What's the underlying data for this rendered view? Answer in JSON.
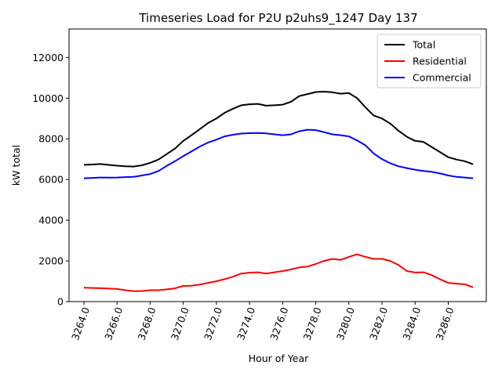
{
  "chart_data": {
    "type": "line",
    "title": "Timeseries Load for P2U p2uhs9_1247  Day 137",
    "xlabel": "Hour of Year",
    "ylabel": "kW total",
    "xlim": [
      3263.1,
      3288.3
    ],
    "ylim": [
      0,
      13400
    ],
    "xticks": [
      3264,
      3266,
      3268,
      3270,
      3272,
      3274,
      3276,
      3278,
      3280,
      3282,
      3284,
      3286
    ],
    "xtick_labels": [
      "3264.0",
      "3266.0",
      "3268.0",
      "3270.0",
      "3272.0",
      "3274.0",
      "3276.0",
      "3278.0",
      "3280.0",
      "3282.0",
      "3284.0",
      "3286.0"
    ],
    "yticks": [
      0,
      2000,
      4000,
      6000,
      8000,
      10000,
      12000
    ],
    "ytick_labels": [
      "0",
      "2000",
      "4000",
      "6000",
      "8000",
      "10000",
      "12000"
    ],
    "legend_position": "top-right",
    "x": [
      3264,
      3264.5,
      3265,
      3265.5,
      3266,
      3266.5,
      3267,
      3267.5,
      3268,
      3268.5,
      3269,
      3269.5,
      3270,
      3270.5,
      3271,
      3271.5,
      3272,
      3272.5,
      3273,
      3273.5,
      3274,
      3274.5,
      3275,
      3275.5,
      3276,
      3276.5,
      3277,
      3277.5,
      3278,
      3278.5,
      3279,
      3279.5,
      3280,
      3280.5,
      3281,
      3281.5,
      3282,
      3282.5,
      3283,
      3283.5,
      3284,
      3284.5,
      3285,
      3285.5,
      3286,
      3286.5,
      3287,
      3287.5
    ],
    "series": [
      {
        "name": "Total",
        "color": "#000000",
        "values": [
          6720,
          6740,
          6760,
          6720,
          6680,
          6650,
          6640,
          6700,
          6820,
          6980,
          7250,
          7520,
          7900,
          8180,
          8480,
          8780,
          9000,
          9280,
          9480,
          9650,
          9700,
          9720,
          9630,
          9650,
          9680,
          9820,
          10100,
          10200,
          10300,
          10320,
          10290,
          10220,
          10250,
          10000,
          9550,
          9150,
          9000,
          8750,
          8400,
          8100,
          7900,
          7850,
          7600,
          7350,
          7100,
          6980,
          6900,
          6750
        ]
      },
      {
        "name": "Residential",
        "color": "#ff0000",
        "values": [
          680,
          670,
          660,
          640,
          620,
          560,
          510,
          520,
          560,
          560,
          600,
          650,
          770,
          780,
          840,
          920,
          1000,
          1100,
          1220,
          1380,
          1420,
          1440,
          1380,
          1440,
          1500,
          1580,
          1680,
          1720,
          1850,
          2000,
          2100,
          2050,
          2200,
          2320,
          2200,
          2100,
          2100,
          2000,
          1800,
          1500,
          1430,
          1440,
          1300,
          1100,
          920,
          880,
          850,
          700
        ]
      },
      {
        "name": "Commercial",
        "color": "#0000ff",
        "values": [
          6060,
          6080,
          6100,
          6090,
          6100,
          6120,
          6130,
          6200,
          6270,
          6420,
          6670,
          6900,
          7150,
          7380,
          7620,
          7820,
          7960,
          8120,
          8200,
          8260,
          8280,
          8290,
          8270,
          8220,
          8180,
          8220,
          8370,
          8450,
          8430,
          8330,
          8220,
          8180,
          8120,
          7920,
          7680,
          7280,
          7000,
          6800,
          6650,
          6560,
          6480,
          6420,
          6380,
          6300,
          6200,
          6130,
          6100,
          6060
        ]
      }
    ]
  }
}
